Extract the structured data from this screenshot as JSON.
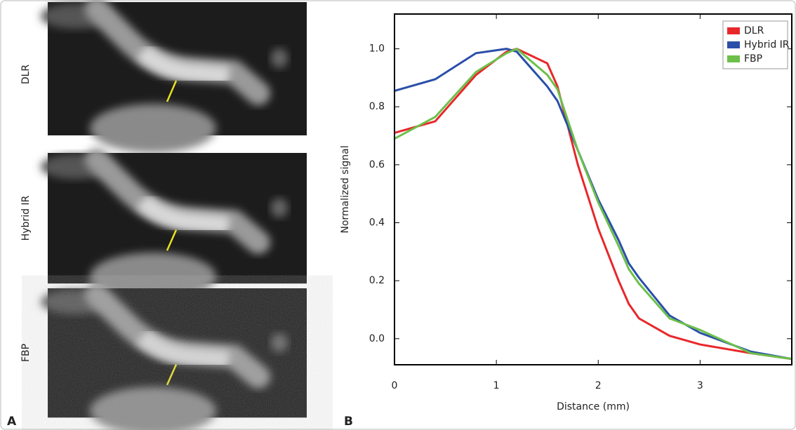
{
  "figure": {
    "left_label": "A",
    "right_label": "B",
    "image_labels": [
      "DLR",
      "Hybrid IR",
      "FBP"
    ]
  },
  "chart_data": {
    "type": "line",
    "x_label": "Distance (mm)",
    "y_label": "Normalized signal",
    "x": [
      0,
      0.4,
      0.8,
      1.1,
      1.2,
      1.5,
      1.6,
      1.8,
      2.0,
      2.2,
      2.3,
      2.4,
      2.7,
      3.0,
      3.5,
      3.9
    ],
    "series": [
      {
        "name": "DLR",
        "color": "#e8272b",
        "values": [
          0.71,
          0.75,
          0.91,
          0.99,
          1.0,
          0.95,
          0.87,
          0.6,
          0.38,
          0.2,
          0.12,
          0.07,
          0.01,
          -0.02,
          -0.05,
          -0.07
        ]
      },
      {
        "name": "Hybrid IR",
        "color": "#2a4fa8",
        "values": [
          0.855,
          0.895,
          0.985,
          1.0,
          0.99,
          0.87,
          0.82,
          0.65,
          0.48,
          0.34,
          0.26,
          0.21,
          0.08,
          0.02,
          -0.045,
          -0.07
        ]
      },
      {
        "name": "FBP",
        "color": "#6cc04a",
        "values": [
          0.69,
          0.765,
          0.92,
          0.985,
          1.0,
          0.91,
          0.86,
          0.65,
          0.47,
          0.32,
          0.24,
          0.19,
          0.07,
          0.03,
          -0.05,
          -0.07
        ]
      }
    ],
    "xlim": [
      0,
      3.9
    ],
    "ylim": [
      -0.09,
      1.12
    ],
    "xticks": [
      0,
      1,
      2,
      3
    ],
    "yticks": [
      {
        "value": 0,
        "label": "0.0"
      },
      0.2,
      0.4,
      0.6,
      0.8,
      {
        "value": 1,
        "label": "1.0"
      }
    ],
    "legend": "upper-right"
  }
}
